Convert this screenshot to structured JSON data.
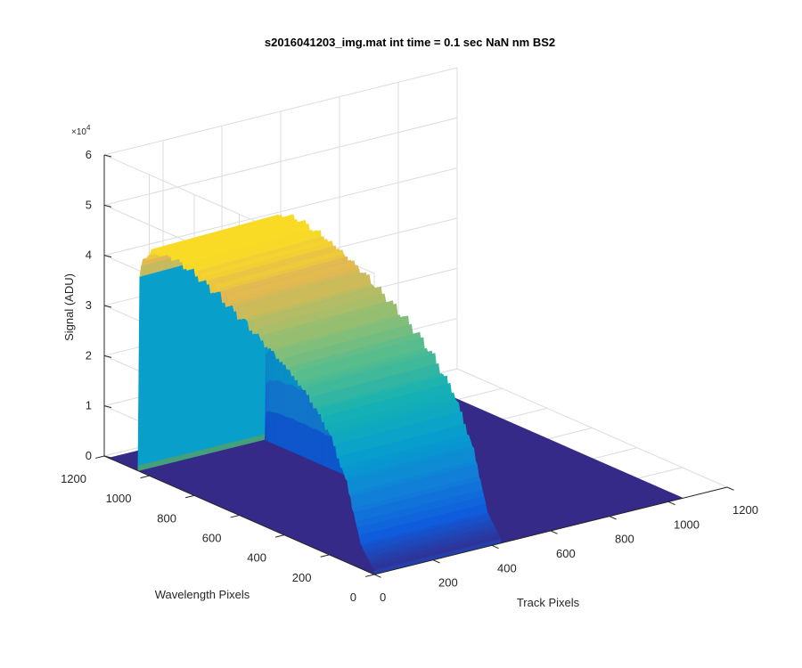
{
  "chart_data": {
    "type": "surface",
    "title": "s2016041203_img.mat int time = 0.1 sec  NaN nm BS2",
    "xlabel": "Track Pixels",
    "ylabel": "Wavelength Pixels",
    "zlabel": "Signal (ADU)",
    "z_exponent_label": "×10",
    "z_exponent_power": "4",
    "xlim": [
      0,
      1200
    ],
    "ylim": [
      0,
      1200
    ],
    "zlim": [
      0,
      60000
    ],
    "x_ticks": [
      "0",
      "200",
      "400",
      "600",
      "800",
      "1000",
      "1200"
    ],
    "y_ticks": [
      "0",
      "200",
      "400",
      "600",
      "800",
      "1000",
      "1200"
    ],
    "z_ticks": [
      "0",
      "1",
      "2",
      "3",
      "4",
      "5",
      "6"
    ],
    "grid": true,
    "colormap": "parula",
    "signal_region": {
      "track_pixels": [
        0,
        430
      ],
      "wavelength_pixels": [
        0,
        1050
      ],
      "baseline": 0
    },
    "profile": {
      "wavelength_pixels": [
        0,
        60,
        120,
        200,
        300,
        400,
        500,
        600,
        700,
        800,
        900,
        950,
        1000,
        1030,
        1045,
        1050
      ],
      "peak_signal": [
        800,
        5000,
        16000,
        25000,
        31000,
        35000,
        38000,
        41000,
        43500,
        45500,
        46500,
        46000,
        45000,
        43000,
        38000,
        1000
      ]
    }
  }
}
